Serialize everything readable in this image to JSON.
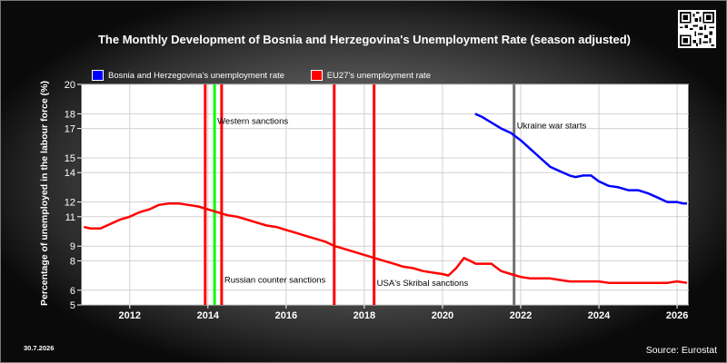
{
  "chart_data": {
    "type": "line",
    "title": "The Monthly Development of Bosnia and Herzegovina's Unemployment Rate (season adjusted)",
    "ylabel": "Percentage of unemployed in the labour force (%)",
    "xlabel": "",
    "ylim": [
      5,
      20
    ],
    "xlim": [
      2010.75,
      2026.3
    ],
    "yticks": [
      5,
      6,
      8,
      9,
      11,
      12,
      14,
      15,
      17,
      18,
      20
    ],
    "xticks": [
      2012,
      2014,
      2016,
      2018,
      2020,
      2022,
      2024,
      2026
    ],
    "grid": true,
    "legend_position": "top-left",
    "series": [
      {
        "name": "Bosnia and Herzegovina's unemployment rate",
        "color": "#0000ff",
        "points": [
          [
            2020.83,
            18.0
          ],
          [
            2021.0,
            17.8
          ],
          [
            2021.25,
            17.4
          ],
          [
            2021.5,
            17.0
          ],
          [
            2021.75,
            16.7
          ],
          [
            2022.0,
            16.2
          ],
          [
            2022.25,
            15.6
          ],
          [
            2022.5,
            15.0
          ],
          [
            2022.75,
            14.4
          ],
          [
            2023.0,
            14.1
          ],
          [
            2023.25,
            13.8
          ],
          [
            2023.4,
            13.7
          ],
          [
            2023.6,
            13.8
          ],
          [
            2023.8,
            13.8
          ],
          [
            2024.0,
            13.4
          ],
          [
            2024.25,
            13.1
          ],
          [
            2024.5,
            13.0
          ],
          [
            2024.75,
            12.8
          ],
          [
            2025.0,
            12.8
          ],
          [
            2025.25,
            12.6
          ],
          [
            2025.5,
            12.3
          ],
          [
            2025.75,
            12.0
          ],
          [
            2026.0,
            12.0
          ],
          [
            2026.15,
            11.9
          ],
          [
            2026.5,
            11.9
          ]
        ]
      },
      {
        "name": "EU27's unemployment rate",
        "color": "#ff0000",
        "points": [
          [
            2010.83,
            10.3
          ],
          [
            2011.0,
            10.2
          ],
          [
            2011.25,
            10.2
          ],
          [
            2011.5,
            10.5
          ],
          [
            2011.75,
            10.8
          ],
          [
            2012.0,
            11.0
          ],
          [
            2012.25,
            11.3
          ],
          [
            2012.5,
            11.5
          ],
          [
            2012.75,
            11.8
          ],
          [
            2013.0,
            11.9
          ],
          [
            2013.25,
            11.9
          ],
          [
            2013.5,
            11.8
          ],
          [
            2013.75,
            11.7
          ],
          [
            2014.0,
            11.5
          ],
          [
            2014.25,
            11.3
          ],
          [
            2014.5,
            11.1
          ],
          [
            2014.75,
            11.0
          ],
          [
            2015.0,
            10.8
          ],
          [
            2015.25,
            10.6
          ],
          [
            2015.5,
            10.4
          ],
          [
            2015.75,
            10.3
          ],
          [
            2016.0,
            10.1
          ],
          [
            2016.25,
            9.9
          ],
          [
            2016.5,
            9.7
          ],
          [
            2016.75,
            9.5
          ],
          [
            2017.0,
            9.3
          ],
          [
            2017.25,
            9.0
          ],
          [
            2017.5,
            8.8
          ],
          [
            2017.75,
            8.6
          ],
          [
            2018.0,
            8.4
          ],
          [
            2018.25,
            8.2
          ],
          [
            2018.5,
            8.0
          ],
          [
            2018.75,
            7.8
          ],
          [
            2019.0,
            7.6
          ],
          [
            2019.25,
            7.5
          ],
          [
            2019.5,
            7.3
          ],
          [
            2019.75,
            7.2
          ],
          [
            2020.0,
            7.1
          ],
          [
            2020.15,
            7.0
          ],
          [
            2020.35,
            7.5
          ],
          [
            2020.55,
            8.2
          ],
          [
            2020.7,
            8.0
          ],
          [
            2020.85,
            7.8
          ],
          [
            2021.0,
            7.8
          ],
          [
            2021.25,
            7.8
          ],
          [
            2021.5,
            7.3
          ],
          [
            2021.75,
            7.1
          ],
          [
            2022.0,
            6.9
          ],
          [
            2022.25,
            6.8
          ],
          [
            2022.5,
            6.8
          ],
          [
            2022.75,
            6.8
          ],
          [
            2023.0,
            6.7
          ],
          [
            2023.25,
            6.6
          ],
          [
            2023.5,
            6.6
          ],
          [
            2023.75,
            6.6
          ],
          [
            2024.0,
            6.6
          ],
          [
            2024.25,
            6.5
          ],
          [
            2024.5,
            6.5
          ],
          [
            2024.75,
            6.5
          ],
          [
            2025.0,
            6.5
          ],
          [
            2025.25,
            6.5
          ],
          [
            2025.5,
            6.5
          ],
          [
            2025.75,
            6.5
          ],
          [
            2026.0,
            6.6
          ],
          [
            2026.5,
            6.5
          ]
        ]
      }
    ],
    "events": [
      {
        "label": "Western sanctions",
        "x": 2014.17,
        "color": "#00ff00",
        "label_y": 17.3
      },
      {
        "label": "",
        "x": 2013.93,
        "color": "#ff0000",
        "label_y": null
      },
      {
        "label": "Russian counter sanctions",
        "x": 2014.35,
        "color": "#ff0000",
        "label_y": 6.5
      },
      {
        "label": "",
        "x": 2017.23,
        "color": "#ff0000",
        "label_y": null
      },
      {
        "label": "USA's Skribal sanctions",
        "x": 2018.25,
        "color": "#ff0000",
        "label_y": 6.3
      },
      {
        "label": "Ukraine war starts",
        "x": 2021.83,
        "color": "#707070",
        "label_y": 17.0
      }
    ]
  },
  "header": {
    "title": "The Monthly Development of Bosnia and Herzegovina's Unemployment Rate (season adjusted)"
  },
  "legend": {
    "items": [
      {
        "label": "Bosnia and Herzegovina's unemployment rate",
        "color": "#0000ff"
      },
      {
        "label": "EU27's unemployment rate",
        "color": "#ff0000"
      }
    ]
  },
  "axes": {
    "ylabel": "Percentage of unemployed in the labour force (%)"
  },
  "footer": {
    "date": "30.7.2026",
    "source": "Source: Eurostat"
  },
  "qr_icon": "qr-code-icon"
}
